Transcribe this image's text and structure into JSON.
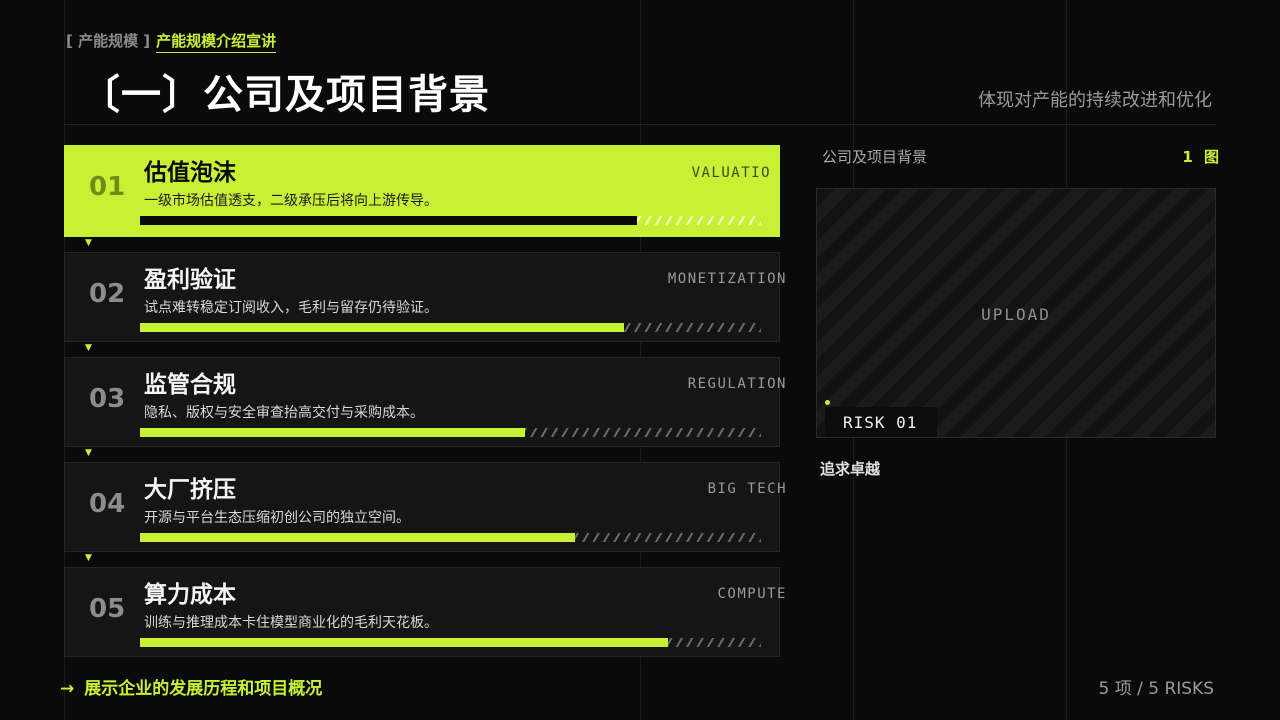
{
  "header": {
    "breadcrumb_section": "[ 产能规模 ]",
    "breadcrumb_current": "产能规模介绍宣讲",
    "title": "〔一〕公司及项目背景",
    "subtitle": "体现对产能的持续改进和优化"
  },
  "cards": [
    {
      "num": "01",
      "title": "估值泡沫",
      "desc": "一级市场估值透支，二级承压后将向上游传导。",
      "tag": "VALUATIO",
      "progress": 0.8,
      "active": true
    },
    {
      "num": "02",
      "title": "盈利验证",
      "desc": "试点难转稳定订阅收入，毛利与留存仍待验证。",
      "tag": "MONETIZATION",
      "progress": 0.78,
      "active": false
    },
    {
      "num": "03",
      "title": "监管合规",
      "desc": "隐私、版权与安全审查抬高交付与采购成本。",
      "tag": "REGULATION",
      "progress": 0.62,
      "active": false
    },
    {
      "num": "04",
      "title": "大厂挤压",
      "desc": "开源与平台生态压缩初创公司的独立空间。",
      "tag": "BIG TECH",
      "progress": 0.7,
      "active": false
    },
    {
      "num": "05",
      "title": "算力成本",
      "desc": "训练与推理成本卡住模型商业化的毛利天花板。",
      "tag": "COMPUTE",
      "progress": 0.85,
      "active": false
    }
  ],
  "panel": {
    "title": "公司及项目背景",
    "count": "1 图",
    "upload_label": "UPLOAD",
    "risk_label": "RISK 01",
    "caption": "追求卓越"
  },
  "footer": {
    "arrow": "→",
    "left_text": "展示企业的发展历程和项目概况",
    "right_text": "5 项 / 5 RISKS"
  },
  "colors": {
    "accent": "#c8f135",
    "background": "#0a0a0a",
    "card_bg": "#151515"
  },
  "icons": {
    "footer_arrow": "arrow-right-icon",
    "card_marker": "triangle-down-icon",
    "risk_dot": "dot-icon"
  }
}
